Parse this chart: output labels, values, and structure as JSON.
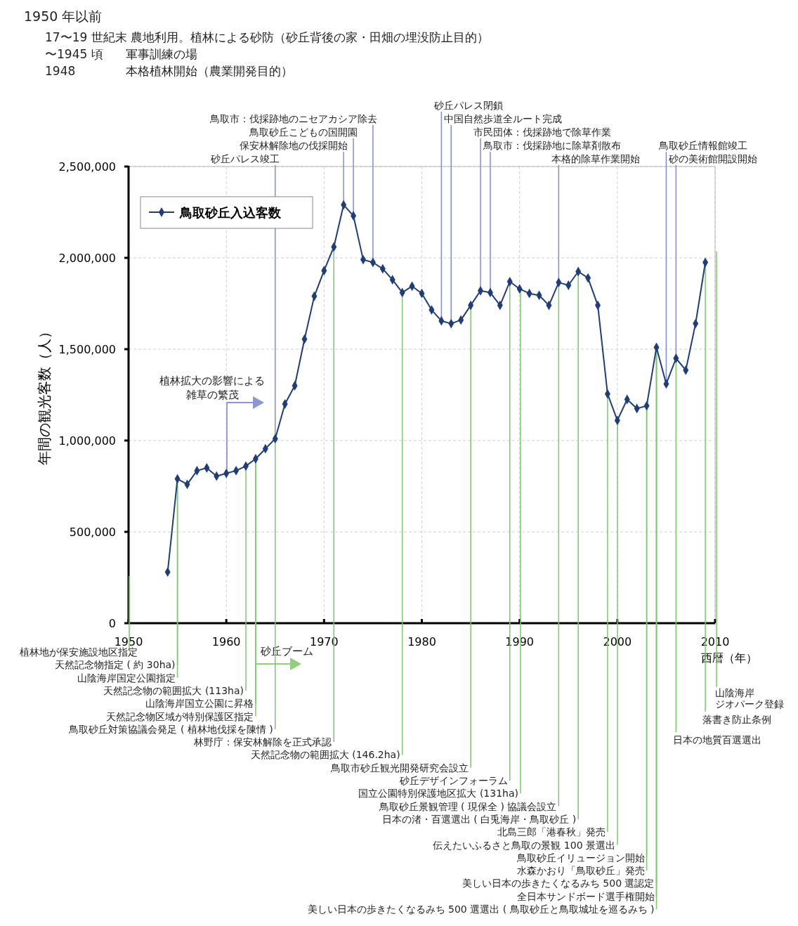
{
  "chart_data": {
    "type": "line",
    "title": "1950 年以前",
    "subtitle": "17〜19 世紀末 農地利用。植林による砂防（砂丘背後の家・田畑の埋没防止目的）",
    "xlabel": "西暦（年）",
    "ylabel": "年間の観光客数（人）",
    "xlim": [
      1950,
      2010
    ],
    "xticks": [
      1950,
      1960,
      1970,
      1980,
      1990,
      2000,
      2010
    ],
    "ylim": [
      0,
      2500000
    ],
    "yticks": [
      0,
      {
        "value": 500000,
        "label": "500,000"
      },
      {
        "value": 1000000,
        "label": "1,000,000"
      },
      {
        "value": 1500000,
        "label": "1,500,000"
      },
      {
        "value": 2000000,
        "label": "2,000,000"
      },
      {
        "value": 2500000,
        "label": "2,500,000"
      }
    ],
    "grid": true,
    "legend": "top left",
    "marker": "diamond",
    "line_style": "solid",
    "series": [
      {
        "name": "鳥取砂丘入込客数",
        "color": "#1f3d7a",
        "x": [
          1954,
          1955,
          1956,
          1957,
          1958,
          1959,
          1960,
          1961,
          1962,
          1963,
          1964,
          1965,
          1966,
          1967,
          1968,
          1969,
          1970,
          1971,
          1972,
          1973,
          1974,
          1975,
          1976,
          1977,
          1978,
          1979,
          1980,
          1981,
          1982,
          1983,
          1984,
          1985,
          1986,
          1987,
          1988,
          1989,
          1990,
          1991,
          1992,
          1993,
          1994,
          1995,
          1996,
          1997,
          1998,
          1999,
          2000,
          2001,
          2002,
          2003,
          2004,
          2005,
          2006,
          2007,
          2008,
          2009
        ],
        "values": [
          280000,
          790000,
          760000,
          835000,
          850000,
          805000,
          820000,
          835000,
          860000,
          900000,
          955000,
          1010000,
          1200000,
          1300000,
          1555000,
          1790000,
          1930000,
          2060000,
          2290000,
          2230000,
          1990000,
          1975000,
          1940000,
          1880000,
          1810000,
          1845000,
          1805000,
          1715000,
          1655000,
          1640000,
          1660000,
          1740000,
          1820000,
          1810000,
          1740000,
          1870000,
          1830000,
          1805000,
          1795000,
          1740000,
          1865000,
          1850000,
          1925000,
          1890000,
          1740000,
          1255000,
          1110000,
          1225000,
          1175000,
          1190000,
          1510000,
          1310000,
          1450000,
          1385000,
          1640000,
          1975000
        ]
      }
    ],
    "ref_lines": [
      {
        "axis": "x",
        "value": 1965,
        "label": "砂丘パレス竣工",
        "color": "#7f8fd1"
      },
      {
        "axis": "x",
        "value": 1972,
        "label": "保安林解除地の伐採開始",
        "color": "#7f8fd1"
      },
      {
        "axis": "x",
        "value": 1973,
        "label": "鳥取砂丘こどもの国開園",
        "color": "#7f8fd1"
      },
      {
        "axis": "x",
        "value": 1975,
        "label": "鳥取市：伐採跡地のニセアカシア除去",
        "color": "#7f8fd1"
      },
      {
        "axis": "x",
        "value": 1994,
        "label": "本格的除草作業開始",
        "color": "#7f8fd1"
      },
      {
        "axis": "x",
        "value": 1987,
        "label": "鳥取市：伐採跡地に除草剤散布",
        "color": "#7f8fd1"
      },
      {
        "axis": "x",
        "value": 1986,
        "label": "市民団体：伐採跡地で除草作業",
        "color": "#7f8fd1"
      },
      {
        "axis": "x",
        "value": 1983,
        "label": "中国自然歩道全ルート完成",
        "color": "#7f8fd1"
      },
      {
        "axis": "x",
        "value": 1982,
        "label": "砂丘パレス閉鎖",
        "color": "#7f8fd1"
      },
      {
        "axis": "x",
        "value": 2006,
        "label": "砂の美術館開設開始",
        "color": "#7f8fd1"
      },
      {
        "axis": "x",
        "value": 2005,
        "label": "鳥取砂丘情報館竣工",
        "color": "#7f8fd1"
      }
    ],
    "annotations": [
      "〜1945 頃",
      "軍事訓練の場",
      "1948",
      "本格植林開始（農業開発目的）",
      "植林地が保安施設地区指定",
      "植林拡大の影響による雑草の繁茂",
      "砂丘ブーム",
      "山陰海岸ジオパーク登録",
      {
        "text": "天然記念物指定 ( 約 30ha)",
        "x": 1955,
        "y": 790000
      },
      {
        "text": "山陰海岸国定公園指定",
        "x": 1955,
        "y": 790000
      },
      {
        "text": "天然記念物の範囲拡大 (113ha)",
        "x": 1962,
        "y": 860000
      },
      {
        "text": "山陰海岸国立公園に昇格",
        "x": 1963,
        "y": 900000
      },
      {
        "text": "天然記念物区域が特別保護区指定",
        "x": 1963,
        "y": 900000
      },
      {
        "text": "鳥取砂丘対策協議会発足 ( 植林地伐採を陳情 )",
        "x": 1965,
        "y": 1010000
      },
      {
        "text": "林野庁：保安林解除を正式承認",
        "x": 1971,
        "y": 2060000
      },
      {
        "text": "天然記念物の範囲拡大 (146.2ha)",
        "x": 1978,
        "y": 1810000
      },
      {
        "text": "鳥取市砂丘観光開発研究会設立",
        "x": 1985,
        "y": 1740000
      },
      {
        "text": "砂丘デザインフォーラム",
        "x": 1989,
        "y": 1870000
      },
      "国立公園特別保護地区拡大 (131ha)",
      {
        "text": "鳥取砂丘景観管理 ( 現保全 ) 協議会設立",
        "x": 1994,
        "y": 1865000
      },
      {
        "text": "日本の渚・百選選出 ( 白兎海岸・鳥取砂丘 )",
        "x": 1996,
        "y": 1925000
      },
      {
        "text": "北島三郎「港春秋」発売",
        "x": 1999,
        "y": 1255000
      },
      "伝えたいふるさと鳥取の景観 100 景選出",
      {
        "text": "鳥取砂丘イリュージョン開始",
        "x": 2003,
        "y": 1190000
      },
      {
        "text": "水森かおり「鳥取砂丘」発売",
        "x": 2003,
        "y": 1190000
      },
      {
        "text": "美しい日本の歩きたくなるみち 500 選認定",
        "x": 2004,
        "y": 1510000
      },
      {
        "text": "全日本サンドボード選手権開始",
        "x": 2004,
        "y": 1510000
      },
      {
        "text": "美しい日本の歩きたくなるみち 500 選選出 ( 鳥取砂丘と鳥取城址を巡るみち )",
        "x": 2004,
        "y": 1510000
      },
      {
        "text": "落書き防止条例",
        "x": 2009,
        "y": 1975000
      },
      {
        "text": "日本の地質百選選出",
        "x": 2006,
        "y": 1450000
      }
    ]
  }
}
